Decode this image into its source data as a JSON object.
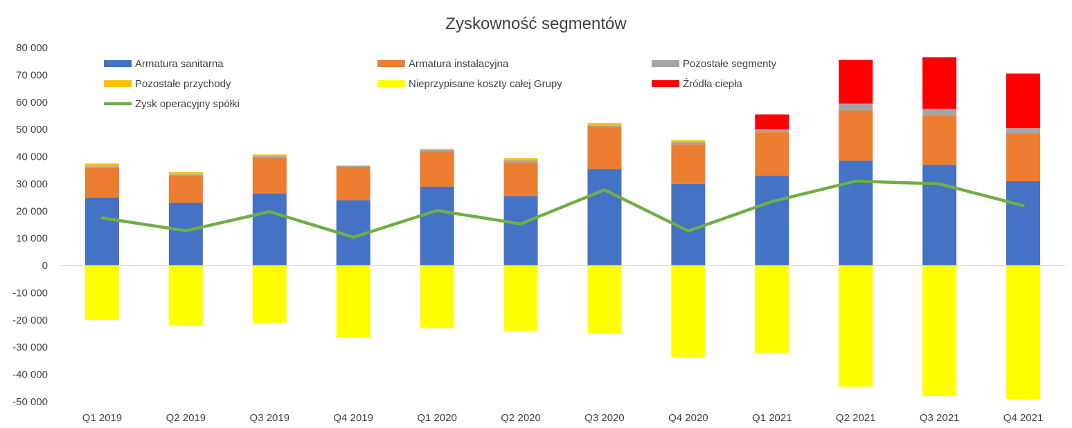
{
  "chart_data": {
    "type": "bar",
    "stacked": true,
    "title": "Zyskowność segmentów",
    "xlabel": "",
    "ylabel": "",
    "ylim": [
      -50000,
      80000
    ],
    "yticks": [
      80000,
      70000,
      60000,
      50000,
      40000,
      30000,
      20000,
      10000,
      0,
      -10000,
      -20000,
      -30000,
      -40000,
      -50000
    ],
    "ytick_labels": [
      "80 000",
      "70 000",
      "60 000",
      "50 000",
      "40 000",
      "30 000",
      "20 000",
      "10 000",
      "0",
      "-10 000",
      "-20 000",
      "-30 000",
      "-40 000",
      "-50 000"
    ],
    "categories": [
      "Q1 2019",
      "Q2 2019",
      "Q3 2019",
      "Q4 2019",
      "Q1 2020",
      "Q2 2020",
      "Q3 2020",
      "Q4 2020",
      "Q1 2021",
      "Q2 2021",
      "Q3 2021",
      "Q4 2021"
    ],
    "legend_position": "top",
    "grid": false,
    "series": [
      {
        "name": "Armatura sanitarna",
        "kind": "bar",
        "color": "#4472C4",
        "values": [
          25000,
          23000,
          26500,
          24000,
          29000,
          25500,
          35500,
          30000,
          33000,
          38500,
          37000,
          31000
        ]
      },
      {
        "name": "Armatura instalacyjna",
        "kind": "bar",
        "color": "#ED7D31",
        "values": [
          11000,
          10000,
          13000,
          12200,
          13000,
          12300,
          15500,
          14500,
          16000,
          18500,
          18000,
          17500
        ]
      },
      {
        "name": "Pozostałe segmenty",
        "kind": "bar",
        "color": "#A5A5A5",
        "values": [
          500,
          500,
          700,
          500,
          500,
          800,
          500,
          800,
          1000,
          2500,
          2500,
          2000
        ]
      },
      {
        "name": "Pozostałe przychody",
        "kind": "bar",
        "color": "#FFC000",
        "values": [
          1000,
          800,
          600,
          0,
          400,
          800,
          800,
          700,
          0,
          0,
          0,
          0
        ]
      },
      {
        "name": "Nieprzypisane koszty całej Grupy",
        "kind": "bar",
        "color": "#FFFF00",
        "values": [
          -20000,
          -22000,
          -21000,
          -26500,
          -23000,
          -24000,
          -25000,
          -33500,
          -32000,
          -44500,
          -48000,
          -49000
        ]
      },
      {
        "name": "Źródła ciepła",
        "kind": "bar",
        "color": "#FF0000",
        "values": [
          0,
          0,
          0,
          0,
          0,
          0,
          0,
          0,
          5500,
          16000,
          19000,
          20000
        ]
      },
      {
        "name": "Zysk operacyjny spółki",
        "kind": "line",
        "color": "#70AD47",
        "values": [
          17500,
          12800,
          19800,
          10400,
          20200,
          15300,
          27800,
          12700,
          23500,
          31000,
          30000,
          22000
        ]
      }
    ]
  }
}
